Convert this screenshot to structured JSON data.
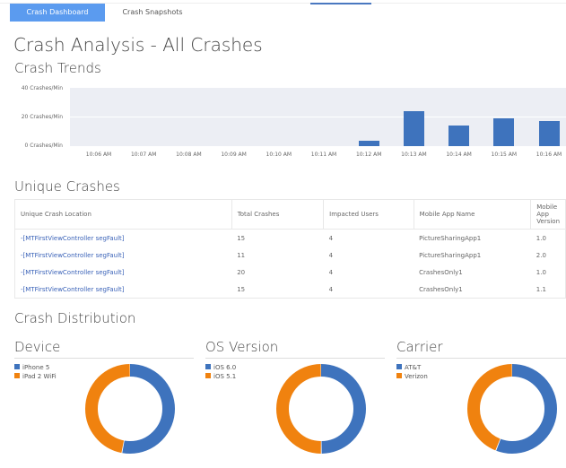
{
  "tabs": [
    {
      "label": "Crash Dashboard",
      "active": true
    },
    {
      "label": "Crash Snapshots",
      "active": false
    }
  ],
  "page_title": "Crash Analysis - All Crashes",
  "trends": {
    "title": "Crash Trends"
  },
  "chart_data": {
    "type": "bar",
    "title": "Crash Trends",
    "categories": [
      "10:06 AM",
      "10:07 AM",
      "10:08 AM",
      "10:09 AM",
      "10:10 AM",
      "10:11 AM",
      "10:12 AM",
      "10:13 AM",
      "10:14 AM",
      "10:15 AM",
      "10:16 AM"
    ],
    "values": [
      0,
      0,
      0,
      0,
      0,
      0,
      4,
      24,
      14,
      19,
      17
    ],
    "yticks": [
      "0 Crashes/Min",
      "20 Crashes/Min",
      "40 Crashes/Min"
    ],
    "ylim": [
      0,
      40
    ],
    "color": "#3e73bd",
    "grid": true
  },
  "unique": {
    "title": "Unique Crashes",
    "headers": [
      "Unique Crash Location",
      "Total Crashes",
      "Impacted Users",
      "Mobile App Name",
      "Mobile App Version"
    ],
    "rows": [
      [
        "-[MTFirstViewController segFault]",
        "15",
        "4",
        "PictureSharingApp1",
        "1.0"
      ],
      [
        "-[MTFirstViewController segFault]",
        "11",
        "4",
        "PictureSharingApp1",
        "2.0"
      ],
      [
        "-[MTFirstViewController segFault]",
        "20",
        "4",
        "CrashesOnly1",
        "1.0"
      ],
      [
        "-[MTFirstViewController segFault]",
        "15",
        "4",
        "CrashesOnly1",
        "1.1"
      ]
    ]
  },
  "distribution": {
    "title": "Crash Distribution",
    "colors": [
      "#3e73bd",
      "#f0820f"
    ],
    "charts": [
      {
        "title": "Device",
        "legend": [
          "iPhone 5",
          "iPad 2 WiFi"
        ],
        "fractions": [
          0.53,
          0.47
        ]
      },
      {
        "title": "OS Version",
        "legend": [
          "iOS 6.0",
          "iOS 5.1"
        ],
        "fractions": [
          0.5,
          0.5
        ]
      },
      {
        "title": "Carrier",
        "legend": [
          "AT&T",
          "Verizon"
        ],
        "fractions": [
          0.56,
          0.44
        ]
      }
    ]
  }
}
